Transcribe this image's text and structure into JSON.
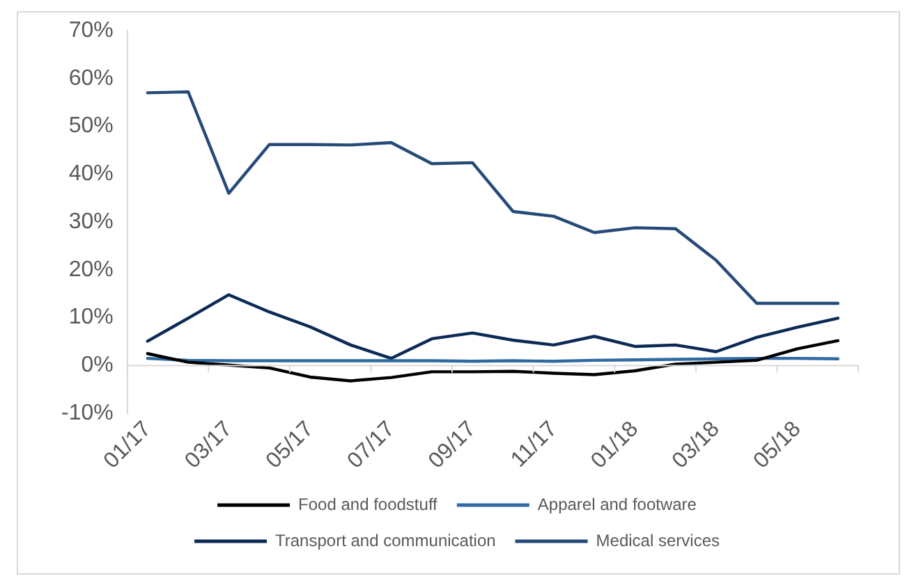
{
  "chart_data": {
    "type": "line",
    "categories": [
      "01/17",
      null,
      "03/17",
      null,
      "05/17",
      null,
      "07/17",
      null,
      "09/17",
      null,
      "11/17",
      null,
      "01/18",
      null,
      "03/18",
      null,
      "05/18",
      null
    ],
    "series": [
      {
        "name": "Food and foodstuff",
        "color": "#000000",
        "values": [
          2.5,
          0.7,
          0.1,
          -0.5,
          -2.4,
          -3.2,
          -2.5,
          -1.3,
          -1.3,
          -1.2,
          -1.6,
          -1.9,
          -1.1,
          0.3,
          0.7,
          1.1,
          3.5,
          5.2
        ]
      },
      {
        "name": "Apparel and footware",
        "color": "#2f6aa0",
        "values": [
          1.5,
          1.1,
          1,
          1,
          1,
          1,
          1,
          1,
          0.9,
          1,
          0.9,
          1.1,
          1.2,
          1.3,
          1.4,
          1.5,
          1.5,
          1.4
        ]
      },
      {
        "name": "Transport and communication",
        "color": "#0b2a55",
        "values": [
          5.1,
          9.9,
          14.8,
          11.2,
          8.1,
          4.3,
          1.5,
          5.6,
          6.8,
          5.3,
          4.3,
          6.1,
          4,
          4.3,
          2.9,
          5.9,
          8,
          9.9
        ]
      },
      {
        "name": "Medical services",
        "color": "#264a78",
        "values": [
          57,
          57.2,
          36,
          46.2,
          46.2,
          46.1,
          46.6,
          42.2,
          42.4,
          32.2,
          31.2,
          27.8,
          28.8,
          28.6,
          22,
          13,
          13,
          13
        ]
      }
    ],
    "ylim": [
      -10,
      70
    ],
    "yticks": [
      {
        "value": -10,
        "label": "-10%"
      },
      {
        "value": 0,
        "label": "0%"
      },
      {
        "value": 10,
        "label": "10%"
      },
      {
        "value": 20,
        "label": "20%"
      },
      {
        "value": 30,
        "label": "30%"
      },
      {
        "value": 40,
        "label": "40%"
      },
      {
        "value": 50,
        "label": "50%"
      },
      {
        "value": 60,
        "label": "60%"
      },
      {
        "value": 70,
        "label": "70%"
      }
    ],
    "grid": false,
    "legend": "bottom",
    "marker": "none",
    "line_style": "solid"
  }
}
